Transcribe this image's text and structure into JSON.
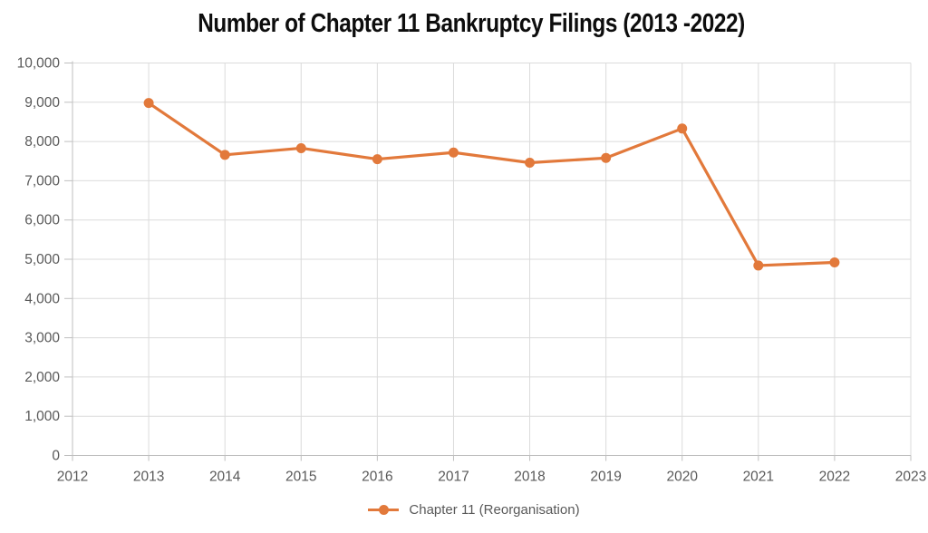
{
  "title": "Number of Chapter 11 Bankruptcy Filings (2013 -2022)",
  "legend": {
    "label": "Chapter 11 (Reorganisation)"
  },
  "colors": {
    "series": "#E2793B",
    "grid": "#DBDBDB",
    "axis": "#BFBFBF",
    "tick": "#BFBFBF",
    "label": "#595959",
    "title": "#0D0D0D",
    "background": "#FFFFFF"
  },
  "chart_data": {
    "type": "line",
    "title": "Number of Chapter 11 Bankruptcy Filings (2013 -2022)",
    "x": [
      2013,
      2014,
      2015,
      2016,
      2017,
      2018,
      2019,
      2020,
      2021,
      2022
    ],
    "series": [
      {
        "name": "Chapter 11 (Reorganisation)",
        "color": "#E2793B",
        "marker": "circle",
        "values": [
          8980,
          7660,
          7830,
          7550,
          7720,
          7460,
          7580,
          8330,
          4840,
          4920
        ]
      }
    ],
    "x_axis": {
      "label": "",
      "min": 2012,
      "max": 2023,
      "tick_labels": [
        "2012",
        "2013",
        "2014",
        "2015",
        "2016",
        "2017",
        "2018",
        "2019",
        "2020",
        "2021",
        "2022",
        "2023"
      ]
    },
    "y_axis": {
      "label": "",
      "min": 0,
      "max": 10000,
      "tick_step": 1000,
      "tick_labels": [
        "0",
        "1,000",
        "2,000",
        "3,000",
        "4,000",
        "5,000",
        "6,000",
        "7,000",
        "8,000",
        "9,000",
        "10,000"
      ]
    },
    "grid": true,
    "legend_position": "bottom"
  }
}
